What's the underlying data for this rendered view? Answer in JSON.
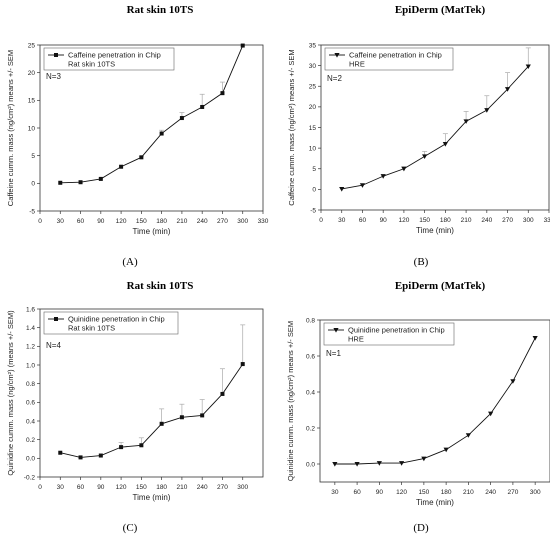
{
  "panels": [
    {
      "title": "Rat skin 10TS",
      "label": "(A)"
    },
    {
      "title": "EpiDerm (MatTek)",
      "label": "(B)"
    },
    {
      "title": "Rat skin 10TS",
      "label": "(C)"
    },
    {
      "title": "EpiDerm (MatTek)",
      "label": "(D)"
    }
  ],
  "chart_data": [
    {
      "type": "line",
      "xlabel": "Time (min)",
      "ylabel": "Caffeine cumm. mass (ng/cm²) means +/- SEM",
      "xlim": [
        0,
        330
      ],
      "ylim": [
        -5,
        25
      ],
      "xticks": [
        0,
        30,
        60,
        90,
        120,
        150,
        180,
        210,
        240,
        270,
        300,
        330
      ],
      "yticks": [
        -5,
        0,
        5,
        10,
        15,
        20,
        25
      ],
      "legend": [
        "Caffeine penetration in Chip",
        "Rat skin 10TS"
      ],
      "legend_position": "top-left",
      "annotation": "N=3",
      "marker": "square",
      "x": [
        30,
        60,
        90,
        120,
        150,
        180,
        210,
        240,
        270,
        300
      ],
      "y": [
        0.1,
        0.2,
        0.8,
        3.0,
        4.7,
        9.0,
        11.8,
        13.8,
        16.3,
        24.9
      ],
      "err": [
        0,
        0,
        0,
        0,
        0.2,
        0.6,
        1.0,
        2.3,
        2.0,
        0
      ]
    },
    {
      "type": "line",
      "xlabel": "Time (min)",
      "ylabel": "Caffeine cumm. mass (ng/cm²) means +/- SEM",
      "xlim": [
        0,
        330
      ],
      "ylim": [
        -5,
        35
      ],
      "xticks": [
        0,
        30,
        60,
        90,
        120,
        150,
        180,
        210,
        240,
        270,
        300,
        330
      ],
      "yticks": [
        -5,
        0,
        5,
        10,
        15,
        20,
        25,
        30,
        35
      ],
      "legend": [
        "Caffeine penetration in Chip",
        "HRE"
      ],
      "legend_position": "top-left",
      "annotation": "N=2",
      "marker": "triangle-down",
      "x": [
        30,
        60,
        90,
        120,
        150,
        180,
        210,
        240,
        270,
        300
      ],
      "y": [
        0.1,
        1.0,
        3.2,
        5.0,
        8.0,
        11.0,
        16.5,
        19.2,
        24.3,
        29.8
      ],
      "err": [
        0,
        0,
        0,
        0.5,
        1.2,
        2.5,
        2.4,
        3.5,
        4.0,
        4.5
      ]
    },
    {
      "type": "line",
      "xlabel": "Time (min)",
      "ylabel": "Quinidine cumm. mass (ng/cm²) (means +/- SEM)",
      "xlim": [
        0,
        330
      ],
      "ylim": [
        -0.2,
        1.6
      ],
      "xticks": [
        0,
        30,
        60,
        90,
        120,
        150,
        180,
        210,
        240,
        270,
        300
      ],
      "yticks": [
        -0.2,
        0.0,
        0.2,
        0.4,
        0.6,
        0.8,
        1.0,
        1.2,
        1.4,
        1.6
      ],
      "legend": [
        "Quinidine penetration in Chip",
        "Rat skin 10TS"
      ],
      "legend_position": "top-left",
      "annotation": "N=4",
      "marker": "square",
      "x": [
        30,
        60,
        90,
        120,
        150,
        180,
        210,
        240,
        270,
        300
      ],
      "y": [
        0.06,
        0.01,
        0.03,
        0.12,
        0.14,
        0.37,
        0.44,
        0.46,
        0.69,
        1.01
      ],
      "err": [
        0,
        0,
        0,
        0.05,
        0.08,
        0.16,
        0.14,
        0.17,
        0.27,
        0.42
      ]
    },
    {
      "type": "line",
      "xlabel": "Time (min)",
      "ylabel": "Quinidine cumm. mass (ng/cm²) means +/- SEM",
      "xlim": [
        10,
        320
      ],
      "ylim": [
        -0.1,
        0.8
      ],
      "xticks": [
        30,
        60,
        90,
        120,
        150,
        180,
        210,
        240,
        270,
        300
      ],
      "yticks": [
        0.0,
        0.2,
        0.4,
        0.6,
        0.8
      ],
      "legend": [
        "Quinidine penetration in Chip",
        "HRE"
      ],
      "legend_position": "top-left",
      "annotation": "N=1",
      "marker": "triangle-down",
      "x": [
        30,
        60,
        90,
        120,
        150,
        180,
        210,
        240,
        270,
        300
      ],
      "y": [
        0.0,
        0.0,
        0.005,
        0.005,
        0.03,
        0.08,
        0.16,
        0.28,
        0.46,
        0.7
      ],
      "err": [
        0,
        0,
        0,
        0,
        0,
        0,
        0,
        0,
        0,
        0
      ]
    }
  ]
}
